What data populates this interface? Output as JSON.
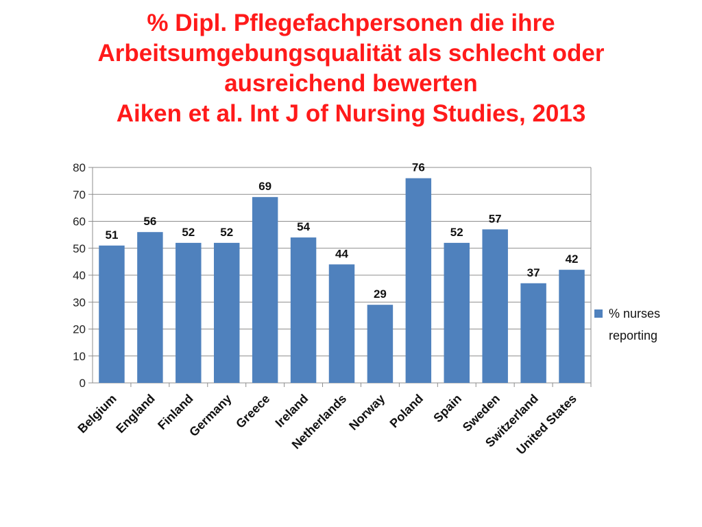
{
  "title": {
    "lines": [
      "% Dipl. Pflegefachpersonen die ihre",
      "Arbeitsumgebungsqualität als schlecht oder",
      "ausreichend bewerten",
      "Aiken et al. Int J of Nursing Studies, 2013"
    ]
  },
  "colors": {
    "title": "#ff1a1a",
    "bar": "#4f81bd",
    "grid": "#8c8c8c"
  },
  "chart_data": {
    "type": "bar",
    "categories": [
      "Belgium",
      "England",
      "Finland",
      "Germany",
      "Greece",
      "Ireland",
      "Netherlands",
      "Norway",
      "Poland",
      "Spain",
      "Sweden",
      "Switzerland",
      "United States"
    ],
    "series": [
      {
        "name": "% nurses reporting",
        "values": [
          51,
          56,
          52,
          52,
          69,
          54,
          44,
          29,
          76,
          52,
          57,
          37,
          42
        ]
      }
    ],
    "data_labels": [
      "51",
      "56",
      "52",
      "52",
      "69",
      "54",
      "44",
      "29",
      "76",
      "52",
      "57",
      "37",
      "42"
    ],
    "ylim": [
      0,
      80
    ],
    "yticks": [
      0,
      10,
      20,
      30,
      40,
      50,
      60,
      70,
      80
    ],
    "grid": true,
    "legend": {
      "placement": "right",
      "lines": [
        "% nurses",
        "reporting"
      ]
    }
  }
}
